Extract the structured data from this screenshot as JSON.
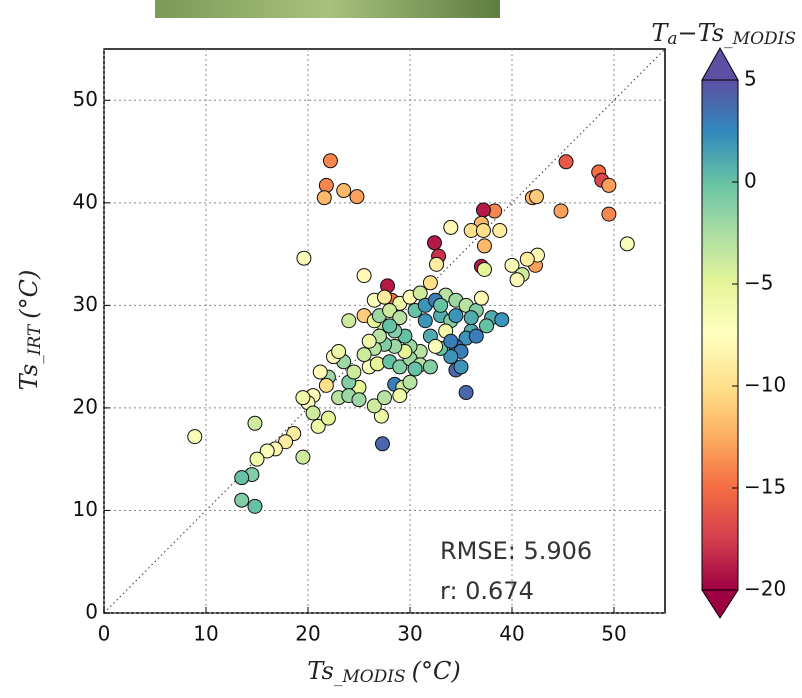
{
  "chart_data": {
    "type": "scatter",
    "xlabel": {
      "main": "Ts",
      "sub": "_MODIS",
      "unit": "(°C)"
    },
    "ylabel": {
      "main": "Ts",
      "sub": "_IRT",
      "unit": "(°C)"
    },
    "colorbar_label": {
      "main": "T",
      "sub1": "a",
      "mid": "−Ts",
      "sub2": "_MODIS"
    },
    "annotations": [
      "RMSE: 5.906",
      "r: 0.674"
    ],
    "xlim": [
      0,
      55
    ],
    "xticks": [
      0,
      10,
      20,
      30,
      40,
      50
    ],
    "ylim": [
      0,
      55
    ],
    "yticks": [
      0,
      10,
      20,
      30,
      40,
      50
    ],
    "grid": true,
    "clim": [
      -20,
      5
    ],
    "cticks": [
      {
        "value": -20,
        "label": "−20"
      },
      {
        "value": -15,
        "label": "−15"
      },
      {
        "value": -10,
        "label": "−10"
      },
      {
        "value": -5,
        "label": "−5"
      },
      0,
      5
    ],
    "colormap": [
      "#9e0142",
      "#d53e4f",
      "#f46d43",
      "#fdae61",
      "#fee08b",
      "#ffffbf",
      "#e6f598",
      "#abdda4",
      "#66c2a5",
      "#3288bd",
      "#5e4fa2"
    ],
    "x": [
      22.2,
      21.8,
      21.6,
      23.5,
      24.8,
      45.3,
      48.5,
      48.8,
      49.5,
      49.5,
      44.8,
      42.0,
      42.4,
      51.3,
      38.3,
      37.2,
      37.0,
      36.0,
      37.2,
      38.8,
      34.0,
      37.3,
      37.0,
      37.3,
      32.4,
      32.8,
      32.6,
      42.3,
      42.5,
      41.5,
      40.0,
      41.0,
      40.5,
      25.5,
      19.6,
      27.8,
      28.2,
      25.5,
      26.5,
      27.5,
      29.0,
      30.0,
      31.0,
      32.0,
      33.5,
      34.5,
      35.5,
      36.5,
      37.0,
      38.0,
      39.0,
      37.5,
      36.0,
      35.5,
      36.5,
      34.5,
      35.0,
      34.0,
      33.0,
      32.0,
      31.5,
      33.0,
      34.0,
      33.5,
      32.5,
      31.0,
      30.0,
      29.5,
      28.5,
      27.5,
      26.5,
      27.0,
      28.0,
      29.0,
      30.5,
      31.5,
      32.5,
      34.5,
      35.5,
      34.0,
      35.0,
      27.3,
      28.5,
      29.3,
      29.0,
      27.2,
      26.5,
      27.5,
      25.0,
      24.0,
      24.5,
      23.5,
      22.5,
      23.0,
      22.0,
      21.2,
      21.8,
      20.5,
      20.0,
      20.5,
      19.5,
      21.0,
      22.0,
      23.0,
      24.0,
      25.0,
      26.0,
      26.8,
      28.0,
      29.0,
      30.0,
      31.0,
      32.0,
      30.5,
      30.0,
      29.5,
      28.5,
      27.5,
      26.5,
      25.5,
      19.5,
      18.6,
      17.8,
      16.8,
      16.0,
      15.0,
      14.8,
      14.5,
      13.5,
      13.5,
      14.8,
      8.9,
      24.0,
      27.0,
      28.0,
      26.0,
      33.0,
      34.5,
      36.0
    ],
    "values": [
      44.1,
      41.7,
      40.5,
      41.2,
      40.6,
      44.0,
      43.0,
      42.2,
      41.7,
      38.9,
      39.2,
      40.5,
      40.6,
      36.0,
      39.2,
      39.3,
      38.0,
      37.3,
      37.3,
      37.3,
      37.6,
      35.8,
      33.8,
      33.5,
      36.1,
      34.8,
      34.0,
      33.9,
      34.9,
      34.5,
      33.9,
      33.0,
      32.5,
      32.9,
      34.6,
      31.9,
      30.5,
      29.0,
      30.5,
      30.8,
      30.2,
      30.8,
      31.2,
      32.2,
      31.0,
      30.5,
      30.0,
      29.5,
      30.7,
      28.8,
      28.6,
      28.0,
      27.5,
      26.8,
      27.0,
      26.0,
      25.5,
      25.0,
      25.8,
      27.0,
      28.5,
      29.0,
      28.5,
      27.5,
      26.0,
      25.5,
      26.0,
      27.0,
      27.5,
      28.0,
      28.5,
      29.0,
      29.5,
      28.8,
      29.5,
      30.0,
      30.5,
      23.7,
      21.5,
      26.5,
      24.0,
      16.5,
      22.3,
      22.0,
      21.2,
      19.2,
      20.2,
      21.0,
      22.0,
      22.5,
      23.5,
      24.5,
      25.0,
      25.5,
      23.0,
      23.5,
      22.2,
      21.2,
      20.5,
      19.5,
      21.0,
      18.2,
      19.0,
      21.0,
      21.2,
      20.8,
      24.0,
      24.3,
      24.5,
      24.0,
      24.8,
      24.2,
      24.0,
      23.8,
      22.5,
      25.5,
      26.0,
      26.2,
      25.8,
      25.2,
      15.2,
      17.5,
      16.7,
      16.0,
      15.8,
      15.0,
      18.5,
      13.5,
      13.2,
      11.0,
      10.4,
      17.2,
      28.5,
      27.0,
      28.0,
      26.5,
      30.0,
      29.0,
      28.8
    ],
    "color_values": [
      -14,
      -14,
      -12,
      -12,
      -13,
      -16,
      -15,
      -17,
      -13,
      -14,
      -13,
      -12,
      -11,
      -7,
      -14,
      -19,
      -12,
      -10,
      -10,
      -9,
      -8,
      -12,
      -19,
      -5,
      -19,
      -18,
      -9,
      -13,
      -8,
      -9,
      -7,
      -4,
      -8,
      -8,
      -7,
      -19,
      -15,
      -11,
      -7,
      -9,
      -6,
      -8,
      -4,
      -10,
      -3,
      -2,
      -3,
      -1,
      -8,
      1,
      2,
      0,
      1,
      2,
      3,
      4,
      3,
      2,
      0,
      1,
      2,
      1,
      -1,
      -6,
      -7,
      -3,
      -2,
      0,
      -1,
      -3,
      -5,
      -2,
      -4,
      -3,
      0,
      2,
      3,
      4,
      4,
      3,
      2,
      4,
      3,
      -4,
      -6,
      -6,
      -4,
      -3,
      -5,
      -1,
      -4,
      -2,
      -7,
      -6,
      -2,
      -8,
      -10,
      -8,
      -7,
      -4,
      -6,
      -6,
      -5,
      -3,
      -2,
      -2,
      -7,
      -5,
      0,
      -1,
      -2,
      -3,
      -1,
      0,
      -3,
      -5,
      -2,
      -1,
      -3,
      -4,
      -4,
      -9,
      -9,
      -8,
      -7,
      -6,
      -4,
      -1,
      0,
      -1,
      0,
      -7,
      -4,
      -3,
      0,
      -6,
      0,
      2,
      1
    ]
  }
}
